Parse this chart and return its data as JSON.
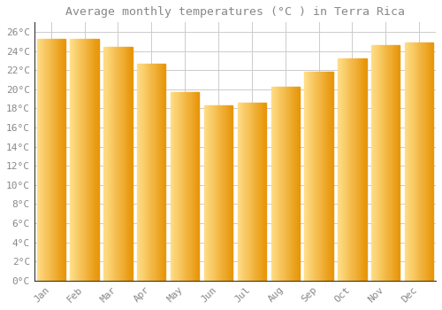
{
  "title": "Average monthly temperatures (°C ) in Terra Rica",
  "months": [
    "Jan",
    "Feb",
    "Mar",
    "Apr",
    "May",
    "Jun",
    "Jul",
    "Aug",
    "Sep",
    "Oct",
    "Nov",
    "Dec"
  ],
  "values": [
    25.3,
    25.3,
    24.4,
    22.7,
    19.7,
    18.3,
    18.6,
    20.3,
    21.8,
    23.2,
    24.6,
    24.9
  ],
  "bar_color_main": "#FDB92E",
  "bar_color_light": "#FFDD88",
  "bar_color_dark": "#E8960A",
  "background_color": "#FFFFFF",
  "plot_bg_color": "#FFFFFF",
  "grid_color": "#CCCCCC",
  "text_color": "#888888",
  "axis_color": "#333333",
  "ylim": [
    0,
    27
  ],
  "ytick_step": 2,
  "title_fontsize": 9.5,
  "tick_fontsize": 8,
  "font_family": "monospace"
}
